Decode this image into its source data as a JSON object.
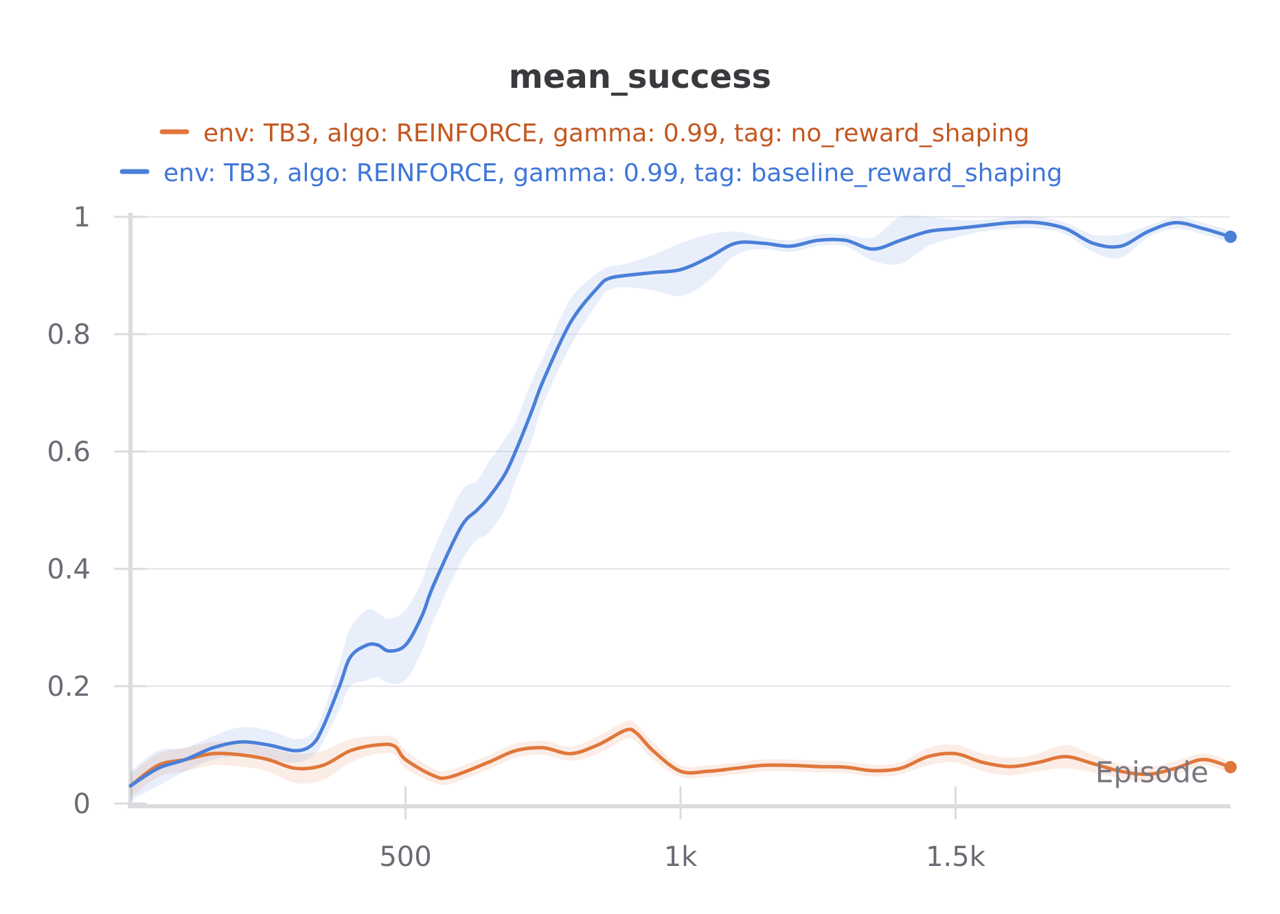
{
  "chart_data": {
    "type": "line",
    "title": "mean_success",
    "xlabel": "Episode",
    "ylabel": "",
    "xlim": [
      0,
      2000
    ],
    "ylim": [
      0,
      1
    ],
    "x_ticks": [
      500,
      1000,
      1500
    ],
    "x_tick_labels": [
      "500",
      "1k",
      "1.5k"
    ],
    "y_ticks": [
      0,
      0.2,
      0.4,
      0.6,
      0.8,
      1
    ],
    "y_tick_labels": [
      "0",
      "0.2",
      "0.4",
      "0.6",
      "0.8",
      "1"
    ],
    "grid": true,
    "legend_position": "top-center",
    "series": [
      {
        "name": "env: TB3, algo: REINFORCE, gamma: 0.99, tag: no_reward_shaping",
        "color": "#e0773a",
        "label_color": "#c4571f",
        "x": [
          0,
          50,
          100,
          150,
          200,
          250,
          300,
          350,
          400,
          450,
          480,
          500,
          550,
          580,
          650,
          700,
          750,
          800,
          850,
          900,
          920,
          950,
          1000,
          1050,
          1100,
          1150,
          1200,
          1250,
          1300,
          1350,
          1400,
          1450,
          1500,
          1550,
          1600,
          1650,
          1700,
          1750,
          1800,
          1850,
          1900,
          1950,
          2000
        ],
        "y": [
          0.03,
          0.065,
          0.075,
          0.085,
          0.083,
          0.075,
          0.06,
          0.065,
          0.09,
          0.1,
          0.098,
          0.075,
          0.048,
          0.045,
          0.07,
          0.09,
          0.095,
          0.085,
          0.1,
          0.125,
          0.12,
          0.09,
          0.055,
          0.055,
          0.06,
          0.065,
          0.065,
          0.063,
          0.062,
          0.056,
          0.06,
          0.08,
          0.085,
          0.07,
          0.063,
          0.07,
          0.08,
          0.068,
          0.055,
          0.05,
          0.06,
          0.075,
          0.062
        ],
        "band": [
          0.02,
          0.02,
          0.02,
          0.02,
          0.02,
          0.02,
          0.025,
          0.025,
          0.02,
          0.015,
          0.015,
          0.015,
          0.012,
          0.012,
          0.012,
          0.012,
          0.012,
          0.012,
          0.015,
          0.015,
          0.015,
          0.015,
          0.01,
          0.01,
          0.01,
          0.01,
          0.01,
          0.01,
          0.01,
          0.01,
          0.01,
          0.015,
          0.015,
          0.015,
          0.015,
          0.015,
          0.02,
          0.015,
          0.012,
          0.012,
          0.012,
          0.01,
          0.01
        ]
      },
      {
        "name": "env: TB3, algo: REINFORCE, gamma: 0.99, tag: baseline_reward_shaping",
        "color": "#4a7fd8",
        "label_color": "#3f76d8",
        "x": [
          0,
          50,
          100,
          150,
          200,
          250,
          300,
          330,
          350,
          380,
          400,
          430,
          450,
          470,
          500,
          530,
          550,
          600,
          630,
          650,
          680,
          700,
          730,
          750,
          800,
          850,
          870,
          900,
          950,
          1000,
          1050,
          1100,
          1150,
          1200,
          1250,
          1300,
          1350,
          1400,
          1450,
          1500,
          1550,
          1600,
          1650,
          1700,
          1750,
          1800,
          1850,
          1900,
          1950,
          2000
        ],
        "y": [
          0.03,
          0.06,
          0.075,
          0.095,
          0.105,
          0.1,
          0.09,
          0.1,
          0.13,
          0.2,
          0.25,
          0.27,
          0.27,
          0.26,
          0.27,
          0.32,
          0.37,
          0.47,
          0.5,
          0.52,
          0.56,
          0.6,
          0.67,
          0.72,
          0.82,
          0.88,
          0.895,
          0.9,
          0.905,
          0.91,
          0.93,
          0.955,
          0.955,
          0.95,
          0.96,
          0.96,
          0.945,
          0.96,
          0.975,
          0.98,
          0.985,
          0.99,
          0.99,
          0.98,
          0.955,
          0.95,
          0.975,
          0.99,
          0.98,
          0.966
        ],
        "band": [
          0.025,
          0.03,
          0.02,
          0.02,
          0.025,
          0.025,
          0.02,
          0.02,
          0.025,
          0.04,
          0.05,
          0.06,
          0.055,
          0.055,
          0.06,
          0.06,
          0.06,
          0.06,
          0.05,
          0.06,
          0.06,
          0.05,
          0.05,
          0.04,
          0.04,
          0.025,
          0.02,
          0.02,
          0.03,
          0.045,
          0.04,
          0.02,
          0.01,
          0.01,
          0.01,
          0.01,
          0.02,
          0.04,
          0.025,
          0.015,
          0.01,
          0.01,
          0.01,
          0.01,
          0.015,
          0.02,
          0.01,
          0.01,
          0.01,
          0.01
        ]
      }
    ]
  }
}
